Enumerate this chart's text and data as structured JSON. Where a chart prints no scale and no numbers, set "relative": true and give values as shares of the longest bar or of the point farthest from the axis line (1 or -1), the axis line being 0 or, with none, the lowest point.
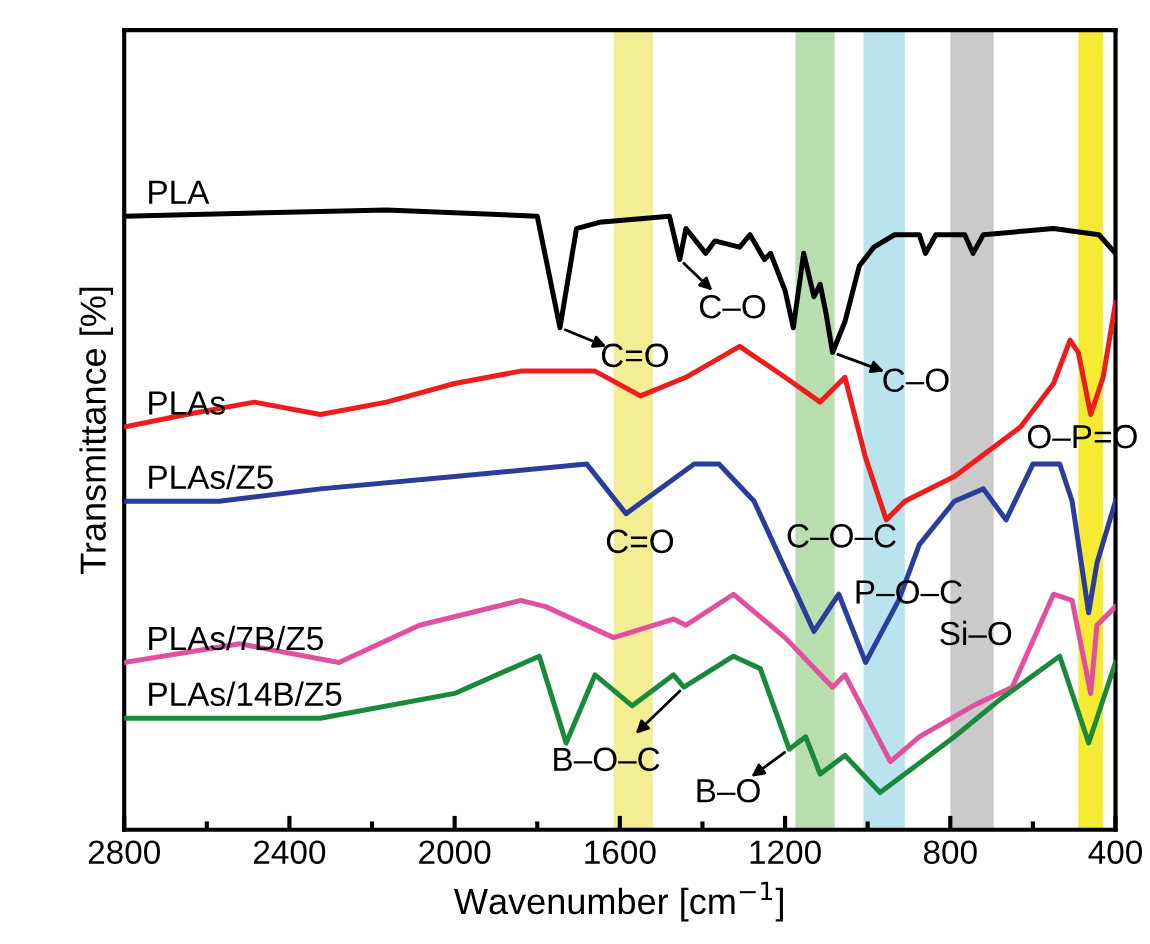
{
  "chart_data": {
    "type": "line",
    "relative": true,
    "xlabel": "Wavenumber [cm$^{−1}$]",
    "ylabel": "Transmittance [%]",
    "xlim": [
      2800,
      400
    ],
    "xticks": [
      2800,
      2400,
      2000,
      1600,
      1200,
      800,
      400
    ],
    "grid": false,
    "legend": false,
    "marker": "none",
    "line_style": "solid",
    "series": [
      {
        "name": "PLA",
        "color": "#000000",
        "x": [
          2800,
          2165,
          1800,
          1745,
          1705,
          1650,
          1480,
          1455,
          1440,
          1392,
          1370,
          1310,
          1285,
          1250,
          1235,
          1200,
          1180,
          1155,
          1130,
          1115,
          1100,
          1085,
          1055,
          1020,
          985,
          935,
          875,
          860,
          835,
          765,
          745,
          720,
          550,
          440,
          400
        ],
        "values": [
          0.99,
          1.0,
          0.99,
          0.81,
          0.97,
          0.98,
          0.99,
          0.92,
          0.97,
          0.93,
          0.95,
          0.94,
          0.96,
          0.92,
          0.93,
          0.87,
          0.81,
          0.93,
          0.86,
          0.88,
          0.83,
          0.77,
          0.82,
          0.91,
          0.94,
          0.96,
          0.96,
          0.93,
          0.96,
          0.96,
          0.93,
          0.96,
          0.97,
          0.96,
          0.93
        ]
      },
      {
        "name": "PLAs",
        "color": "#ee1c1c",
        "x": [
          2800,
          2650,
          2485,
          2325,
          2165,
          2000,
          1840,
          1660,
          1550,
          1440,
          1310,
          1200,
          1115,
          1055,
          1005,
          955,
          910,
          790,
          630,
          550,
          510,
          490,
          460,
          430,
          400
        ],
        "values": [
          0.65,
          0.67,
          0.69,
          0.67,
          0.69,
          0.72,
          0.74,
          0.74,
          0.7,
          0.73,
          0.78,
          0.73,
          0.69,
          0.73,
          0.6,
          0.5,
          0.53,
          0.57,
          0.65,
          0.72,
          0.79,
          0.77,
          0.67,
          0.73,
          0.85
        ]
      },
      {
        "name": "PLAs/Z5",
        "color": "#2a3d9a",
        "x": [
          2800,
          2570,
          2325,
          2000,
          1680,
          1585,
          1420,
          1360,
          1275,
          1130,
          1070,
          1005,
          925,
          875,
          790,
          720,
          665,
          600,
          535,
          505,
          465,
          445,
          400
        ],
        "values": [
          0.53,
          0.53,
          0.55,
          0.57,
          0.59,
          0.51,
          0.59,
          0.59,
          0.53,
          0.32,
          0.38,
          0.27,
          0.37,
          0.46,
          0.53,
          0.55,
          0.5,
          0.59,
          0.59,
          0.53,
          0.35,
          0.43,
          0.53
        ]
      },
      {
        "name": "PLAs/7B/Z5",
        "color": "#e0509e",
        "x": [
          2800,
          2520,
          2280,
          2085,
          1840,
          1780,
          1615,
          1470,
          1440,
          1325,
          1200,
          1085,
          1055,
          945,
          875,
          745,
          650,
          550,
          505,
          460,
          445,
          400
        ],
        "values": [
          0.27,
          0.3,
          0.27,
          0.33,
          0.37,
          0.36,
          0.31,
          0.34,
          0.33,
          0.38,
          0.31,
          0.23,
          0.25,
          0.11,
          0.15,
          0.2,
          0.23,
          0.38,
          0.37,
          0.22,
          0.33,
          0.36
        ]
      },
      {
        "name": "PLAs/14B/Z5",
        "color": "#1a8a3a",
        "x": [
          2800,
          2325,
          2000,
          1795,
          1730,
          1660,
          1570,
          1470,
          1445,
          1325,
          1260,
          1190,
          1150,
          1115,
          1055,
          970,
          790,
          680,
          535,
          465,
          400
        ],
        "values": [
          0.18,
          0.18,
          0.22,
          0.28,
          0.14,
          0.25,
          0.2,
          0.25,
          0.23,
          0.28,
          0.26,
          0.13,
          0.15,
          0.09,
          0.12,
          0.06,
          0.15,
          0.21,
          0.28,
          0.14,
          0.27
        ]
      }
    ],
    "bands": [
      {
        "axis": "x",
        "from": 1615,
        "to": 1520,
        "color": "#f0e878"
      },
      {
        "axis": "x",
        "from": 1175,
        "to": 1080,
        "color": "#a6d49a"
      },
      {
        "axis": "x",
        "from": 1010,
        "to": 910,
        "color": "#a8dde8"
      },
      {
        "axis": "x",
        "from": 800,
        "to": 695,
        "color": "#bdbdbd"
      },
      {
        "axis": "x",
        "from": 490,
        "to": 430,
        "color": "#f2e600"
      }
    ],
    "annotations": [
      {
        "text": "C=O",
        "x": 1745,
        "y": 0.81
      },
      {
        "text": "C–O",
        "x": 1455,
        "y": 0.92
      },
      {
        "text": "C–O",
        "x": 1085,
        "y": 0.77
      },
      {
        "text": "C=O",
        "x": 1585,
        "y": 0.51
      },
      {
        "text": "C–O–C",
        "x": 1070,
        "y": 0.38
      },
      {
        "text": "O–P=O",
        "x": 460,
        "y": 0.67
      },
      {
        "text": "P–O–C",
        "x": 955,
        "y": 0.5
      },
      {
        "text": "Si–O",
        "x": 745,
        "y": 0.2
      },
      {
        "text": "B–O–C",
        "x": 1445,
        "y": 0.23
      },
      {
        "text": "B–O",
        "x": 1190,
        "y": 0.13
      }
    ]
  }
}
